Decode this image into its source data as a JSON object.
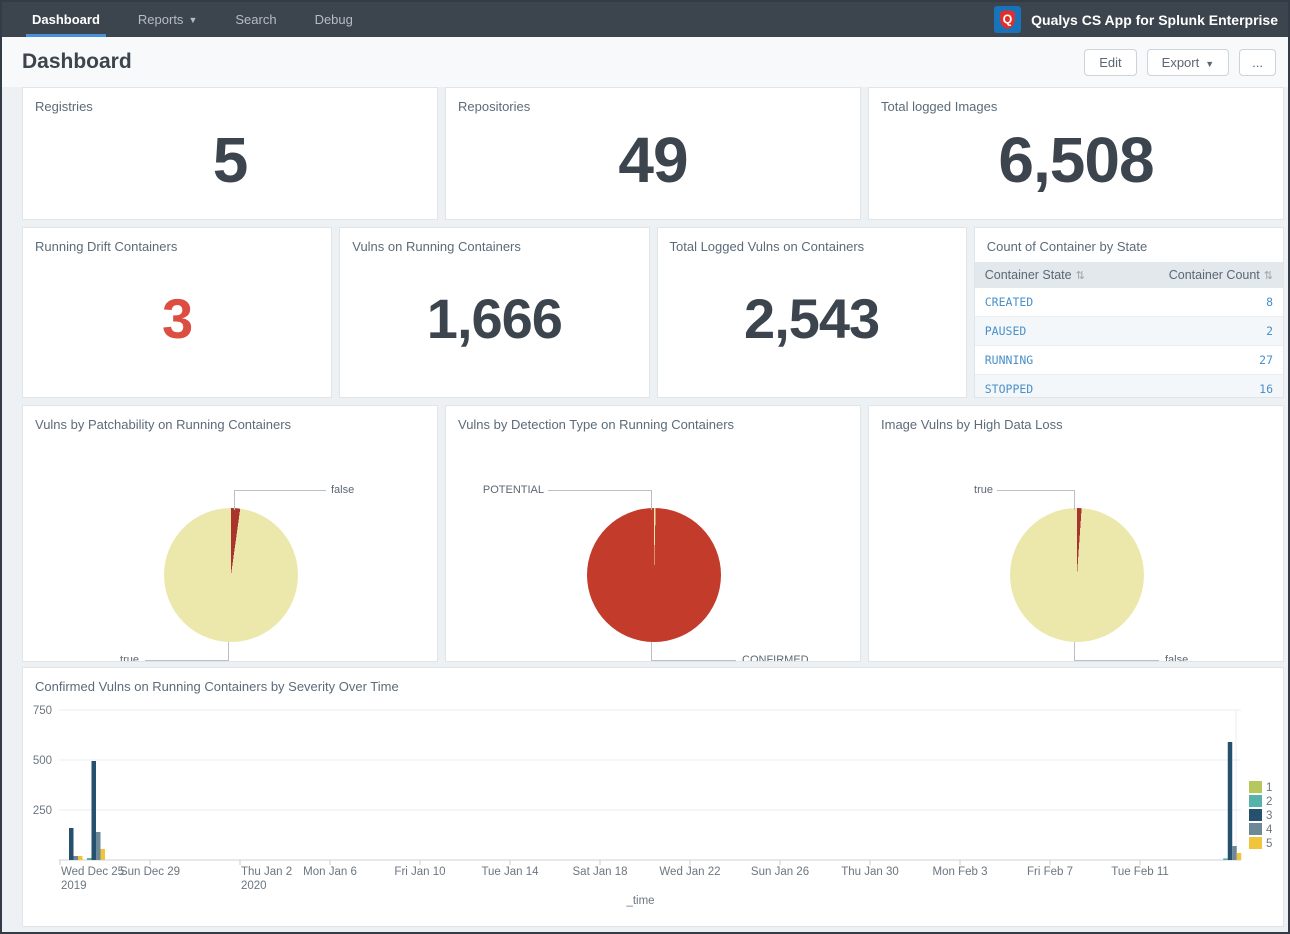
{
  "app": {
    "title": "Qualys CS App for Splunk Enterprise",
    "logo_letter": "Q"
  },
  "nav": {
    "tabs": [
      {
        "label": "Dashboard",
        "active": true
      },
      {
        "label": "Reports",
        "caret": true
      },
      {
        "label": "Search"
      },
      {
        "label": "Debug"
      }
    ]
  },
  "header": {
    "title": "Dashboard",
    "buttons": {
      "edit": "Edit",
      "export": "Export",
      "more": "..."
    }
  },
  "colors": {
    "nav_background": "#3c444d",
    "active_tab_underline": "#4a90d9",
    "alert_red": "#dc4e41",
    "table_link_blue": "#4a90c9"
  },
  "panels": {
    "registries": {
      "title": "Registries",
      "value": "5"
    },
    "repositories": {
      "title": "Repositories",
      "value": "49"
    },
    "total_logged_images": {
      "title": "Total logged Images",
      "value": "6,508"
    },
    "running_drift_containers": {
      "title": "Running Drift Containers",
      "value": "3"
    },
    "vulns_on_running_containers": {
      "title": "Vulns on Running Containers",
      "value": "1,666"
    },
    "total_logged_vulns_on_containers": {
      "title": "Total Logged Vulns on Containers",
      "value": "2,543"
    },
    "container_state_table": {
      "title": "Count of Container by State",
      "columns": [
        "Container State",
        "Container Count"
      ],
      "sort_icon": "⇅",
      "rows": [
        [
          "CREATED",
          "8"
        ],
        [
          "PAUSED",
          "2"
        ],
        [
          "RUNNING",
          "27"
        ],
        [
          "STOPPED",
          "16"
        ]
      ]
    }
  },
  "chart_data": [
    {
      "type": "pie",
      "title": "Vulns by Patchability on Running Containers",
      "slices": [
        {
          "label": "true",
          "pct": 97.8,
          "color": "#ece8ac"
        },
        {
          "label": "false",
          "pct": 2.2,
          "color": "#aa342c"
        }
      ],
      "legend_position": "callout-labels"
    },
    {
      "type": "pie",
      "title": "Vulns by Detection Type on Running Containers",
      "slices": [
        {
          "label": "CONFIRMED",
          "pct": 99.6,
          "color": "#c23b2b"
        },
        {
          "label": "POTENTIAL",
          "pct": 0.4,
          "color": "#ece8ac"
        }
      ],
      "legend_position": "callout-labels"
    },
    {
      "type": "pie",
      "title": "Image Vulns by High Data Loss",
      "slices": [
        {
          "label": "false",
          "pct": 98.9,
          "color": "#ece8ac"
        },
        {
          "label": "true",
          "pct": 1.1,
          "color": "#aa342c"
        }
      ],
      "legend_position": "callout-labels"
    },
    {
      "type": "bar",
      "title": "Confirmed Vulns on Running Containers by Severity Over Time",
      "xlabel": "_time",
      "ylim": [
        0,
        750
      ],
      "yticks": [
        250,
        500,
        750
      ],
      "grid": "horizontal",
      "tick_spacing_days": 4,
      "xticks": [
        [
          "Wed Dec 25",
          "2019"
        ],
        [
          "Sun Dec 29"
        ],
        [
          "Thu Jan 2",
          "2020"
        ],
        [
          "Mon Jan 6"
        ],
        [
          "Fri Jan 10"
        ],
        [
          "Tue Jan 14"
        ],
        [
          "Sat Jan 18"
        ],
        [
          "Wed Jan 22"
        ],
        [
          "Sun Jan 26"
        ],
        [
          "Thu Jan 30"
        ],
        [
          "Mon Feb 3"
        ],
        [
          "Fri Feb 7"
        ],
        [
          "Tue Feb 11"
        ]
      ],
      "legend": [
        {
          "name": "1",
          "color": "#b6c75b"
        },
        {
          "name": "2",
          "color": "#57b2aa"
        },
        {
          "name": "3",
          "color": "#25506e"
        },
        {
          "name": "4",
          "color": "#6d8998"
        },
        {
          "name": "5",
          "color": "#f0c53d"
        }
      ],
      "legend_position": "right",
      "groups": [
        {
          "date": "Wed Dec 25 2019",
          "day": 0,
          "values": {
            "3": 160,
            "4": 20,
            "5": 20
          }
        },
        {
          "date": "Thu Dec 26 2019",
          "day": 1,
          "values": {
            "2": 10,
            "3": 495,
            "4": 140,
            "5": 55
          }
        },
        {
          "date": "Fri Feb 14 2020",
          "day": 51.5,
          "values": {
            "2": 8,
            "3": 590,
            "4": 70,
            "5": 35
          }
        }
      ]
    }
  ]
}
